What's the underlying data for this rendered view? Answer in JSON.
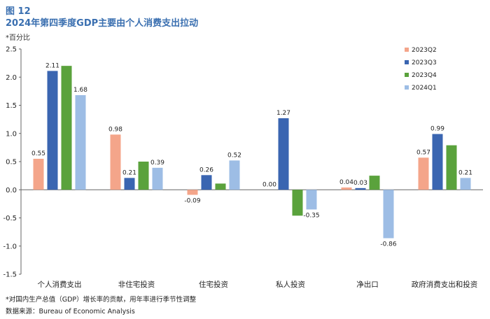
{
  "header": {
    "figure_label": "图 12",
    "title": "2024年第四季度GDP主要由个人消费支出拉动"
  },
  "unit_label": "*百分比",
  "footnote": "*对国内生产总值（GDP）增长率的贡献，用年率进行季节性调整",
  "source": "数据来源：Bureau of Economic Analysis",
  "chart_data": {
    "type": "bar",
    "categories": [
      "个人消费支出",
      "非住宅投资",
      "住宅投资",
      "私人投资",
      "净出口",
      "政府消费支出和投资"
    ],
    "series": [
      {
        "name": "2023Q2",
        "color": "#f4a58a",
        "values": [
          0.55,
          0.98,
          -0.09,
          0.0,
          0.04,
          0.57
        ],
        "labels": [
          "0.55",
          "0.98",
          "-0.09",
          "0.00",
          "0.04",
          "0.57"
        ]
      },
      {
        "name": "2023Q3",
        "color": "#3a65b1",
        "values": [
          2.11,
          0.21,
          0.26,
          1.27,
          0.03,
          0.99
        ],
        "labels": [
          "2.11",
          "0.21",
          "0.26",
          "1.27",
          "0.03",
          "0.99"
        ]
      },
      {
        "name": "2023Q4",
        "color": "#5aa23c",
        "values": [
          2.2,
          0.5,
          0.11,
          -0.46,
          0.25,
          0.79
        ],
        "labels": [
          "",
          "",
          "",
          "",
          "",
          ""
        ]
      },
      {
        "name": "2024Q1",
        "color": "#9dbde5",
        "values": [
          1.68,
          0.39,
          0.52,
          -0.35,
          -0.86,
          0.21
        ],
        "labels": [
          "1.68",
          "0.39",
          "0.52",
          "-0.35",
          "-0.86",
          "0.21"
        ]
      }
    ],
    "yticks": [
      "2.5",
      "2.0",
      "1.5",
      "1.0",
      "0.5",
      "0.0",
      "-0.5",
      "-1.0",
      "-1.5"
    ],
    "ylim": [
      -1.5,
      2.5
    ],
    "legend_position": "top-right",
    "grid": false
  }
}
